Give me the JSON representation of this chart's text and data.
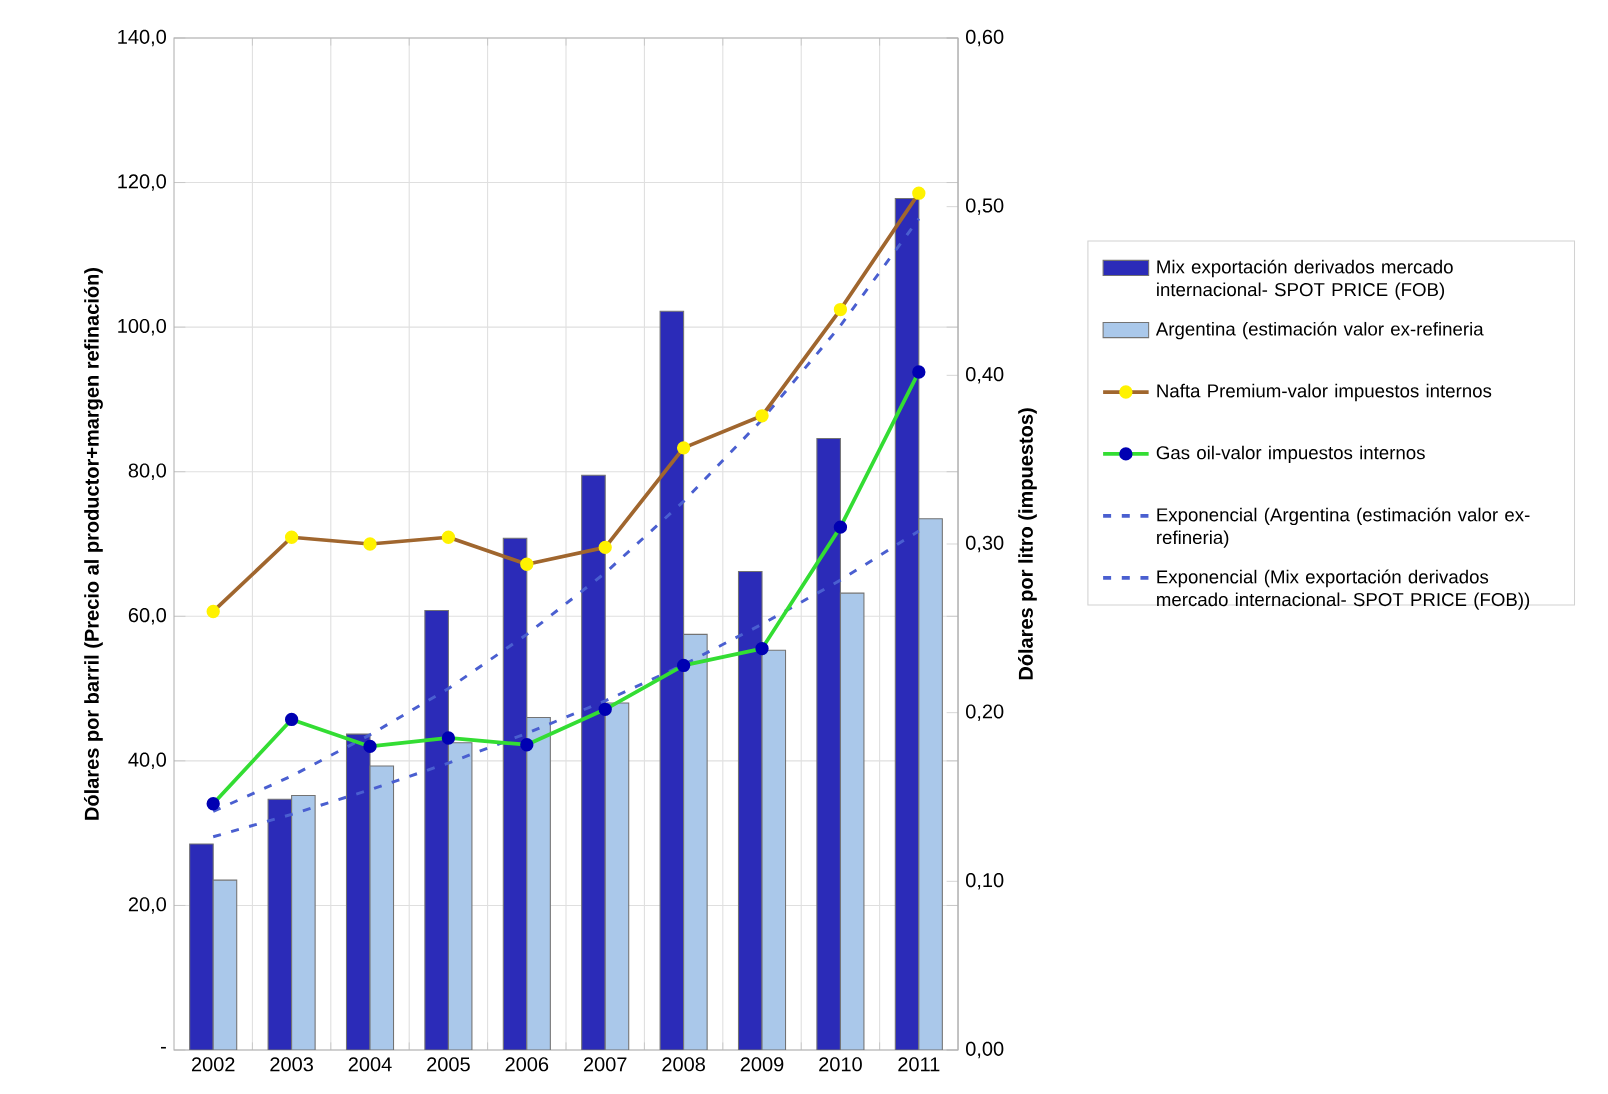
{
  "chart_data": {
    "type": "bar",
    "categories": [
      "2002",
      "2003",
      "2004",
      "2005",
      "2006",
      "2007",
      "2008",
      "2009",
      "2010",
      "2011"
    ],
    "series": [
      {
        "name": "Mix exportación derivados mercado internacional- SPOT PRICE  (FOB)",
        "color": "#2b2bb8",
        "values": [
          28.5,
          34.7,
          43.7,
          60.8,
          70.8,
          79.5,
          102.2,
          66.2,
          84.6,
          117.8
        ]
      },
      {
        "name": "Argentina (estimación valor ex-refineria",
        "color": "#aac8ea",
        "values": [
          23.5,
          35.2,
          39.3,
          42.5,
          46.0,
          48.0,
          57.5,
          55.3,
          63.2,
          73.5
        ]
      },
      {
        "name": "Nafta Premium-valor impuestos internos",
        "type": "line",
        "axis": "y2",
        "color": "#a0662e",
        "marker": "circle",
        "values": [
          0.26,
          0.304,
          0.3,
          0.304,
          0.288,
          0.298,
          0.357,
          0.376,
          0.439,
          0.508
        ]
      },
      {
        "name": "Gas oil-valor impuestos internos",
        "type": "line",
        "axis": "y2",
        "color": "#33dd33",
        "marker": "circle",
        "values": [
          0.146,
          0.196,
          0.18,
          0.185,
          0.181,
          0.202,
          0.228,
          0.238,
          0.31,
          0.402
        ]
      },
      {
        "name": "Exponencial (Argentina (estimación valor ex-refineria)",
        "type": "line",
        "color": "#4a5fd0",
        "line_style": "dashed",
        "values": [
          29.5,
          32.6,
          36.0,
          39.7,
          43.8,
          48.3,
          53.3,
          58.9,
          65.0,
          71.8
        ]
      },
      {
        "name": "Exponencial (Mix exportación derivados mercado internacional- SPOT PRICE  (FOB))",
        "type": "line",
        "color": "#4a5fd0",
        "line_style": "dashed",
        "values": [
          33.0,
          37.9,
          43.6,
          50.0,
          57.5,
          66.0,
          75.9,
          87.2,
          100.2,
          115.0
        ]
      }
    ],
    "ylabel": "Dólares por barril (Precio al productor+margen refinación)",
    "y2label": "Dólares por litro (impuestos)",
    "ylim": [
      0,
      140
    ],
    "yticks": [
      {
        "value": 0,
        "label": "-"
      },
      {
        "value": 20,
        "label": "20,0"
      },
      {
        "value": 40,
        "label": "40,0"
      },
      {
        "value": 60,
        "label": "60,0"
      },
      {
        "value": 80,
        "label": "80,0"
      },
      {
        "value": 100,
        "label": "100,0"
      },
      {
        "value": 120,
        "label": "120,0"
      },
      {
        "value": 140,
        "label": "140,0"
      }
    ],
    "y2lim": [
      0,
      0.6
    ],
    "y2ticks": [
      {
        "value": 0,
        "label": "0,00"
      },
      {
        "value": 0.1,
        "label": "0,10"
      },
      {
        "value": 0.2,
        "label": "0,20"
      },
      {
        "value": 0.3,
        "label": "0,30"
      },
      {
        "value": 0.4,
        "label": "0,40"
      },
      {
        "value": 0.5,
        "label": "0,50"
      },
      {
        "value": 0.6,
        "label": "0,60"
      }
    ],
    "grid": true,
    "legend": "right"
  }
}
